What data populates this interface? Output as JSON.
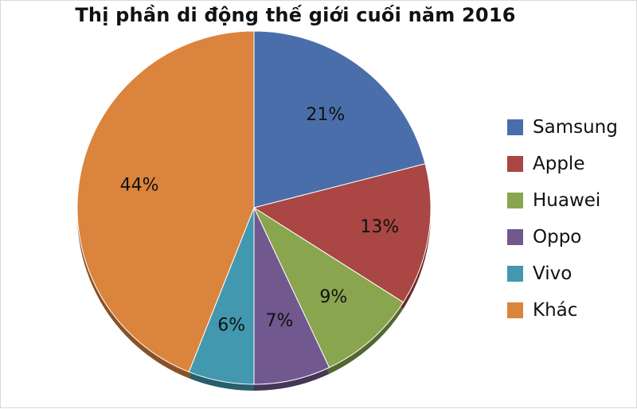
{
  "chart_data": {
    "type": "pie",
    "title": "Thị phần di động thế giới cuối năm 2016",
    "legend_position": "right",
    "slices": [
      {
        "name": "Samsung",
        "value": 21,
        "label": "21%",
        "color": "#4a6ea9"
      },
      {
        "name": "Apple",
        "value": 13,
        "label": "13%",
        "color": "#aa4643"
      },
      {
        "name": "Huawei",
        "value": 9,
        "label": "9%",
        "color": "#89a54e"
      },
      {
        "name": "Oppo",
        "value": 7,
        "label": "7%",
        "color": "#71588f"
      },
      {
        "name": "Vivo",
        "value": 6,
        "label": "6%",
        "color": "#4198af"
      },
      {
        "name": "Khác",
        "value": 44,
        "label": "44%",
        "color": "#db843d"
      }
    ]
  }
}
